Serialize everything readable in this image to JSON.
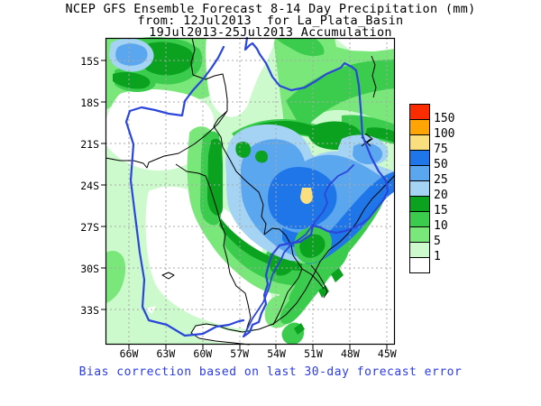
{
  "title": {
    "line1": "NCEP GFS Ensemble Forecast 8-14 Day Precipitation (mm)",
    "line2": "from: 12Jul2013  for La_Plata_Basin",
    "line3": "19Jul2013-25Jul2013 Accumulation"
  },
  "caption": "Bias correction based on last 30-day forecast error",
  "map": {
    "lat_labels": [
      "15S",
      "18S",
      "21S",
      "24S",
      "27S",
      "30S",
      "33S"
    ],
    "lon_labels": [
      "66W",
      "63W",
      "60W",
      "57W",
      "54W",
      "51W",
      "48W",
      "45W"
    ]
  },
  "legend": {
    "boundary_labels": [
      "150",
      "100",
      "75",
      "50",
      "25",
      "20",
      "15",
      "10",
      "5",
      "1"
    ],
    "swatch_colors_top_to_bottom": [
      "#FB2C00",
      "#FFA405",
      "#FADF7E",
      "#1F76E8",
      "#5AA6EF",
      "#A5D3F3",
      "#0AA21E",
      "#3BCC4E",
      "#7AE77A",
      "#CCFACC",
      "#FFFFFF"
    ],
    "scale_values_mm": [
      150,
      100,
      75,
      50,
      25,
      20,
      15,
      10,
      5,
      1
    ]
  },
  "colors": {
    "precip_gt150": "#FB2C00",
    "precip_100_150": "#FFA405",
    "precip_75_100": "#FADF7E",
    "precip_50_75": "#1F76E8",
    "precip_25_50": "#5AA6EF",
    "precip_20_25": "#A5D3F3",
    "precip_15_20": "#0AA21E",
    "precip_10_15": "#3BCC4E",
    "precip_5_10": "#7AE77A",
    "precip_1_5": "#CCFACC",
    "precip_lt1": "#FFFFFF",
    "river_line": "#2B46DB",
    "country_border": "#000000",
    "grid_line": "#A8A8A8",
    "caption_text": "#2B3BE8",
    "title_text": "#000000"
  }
}
